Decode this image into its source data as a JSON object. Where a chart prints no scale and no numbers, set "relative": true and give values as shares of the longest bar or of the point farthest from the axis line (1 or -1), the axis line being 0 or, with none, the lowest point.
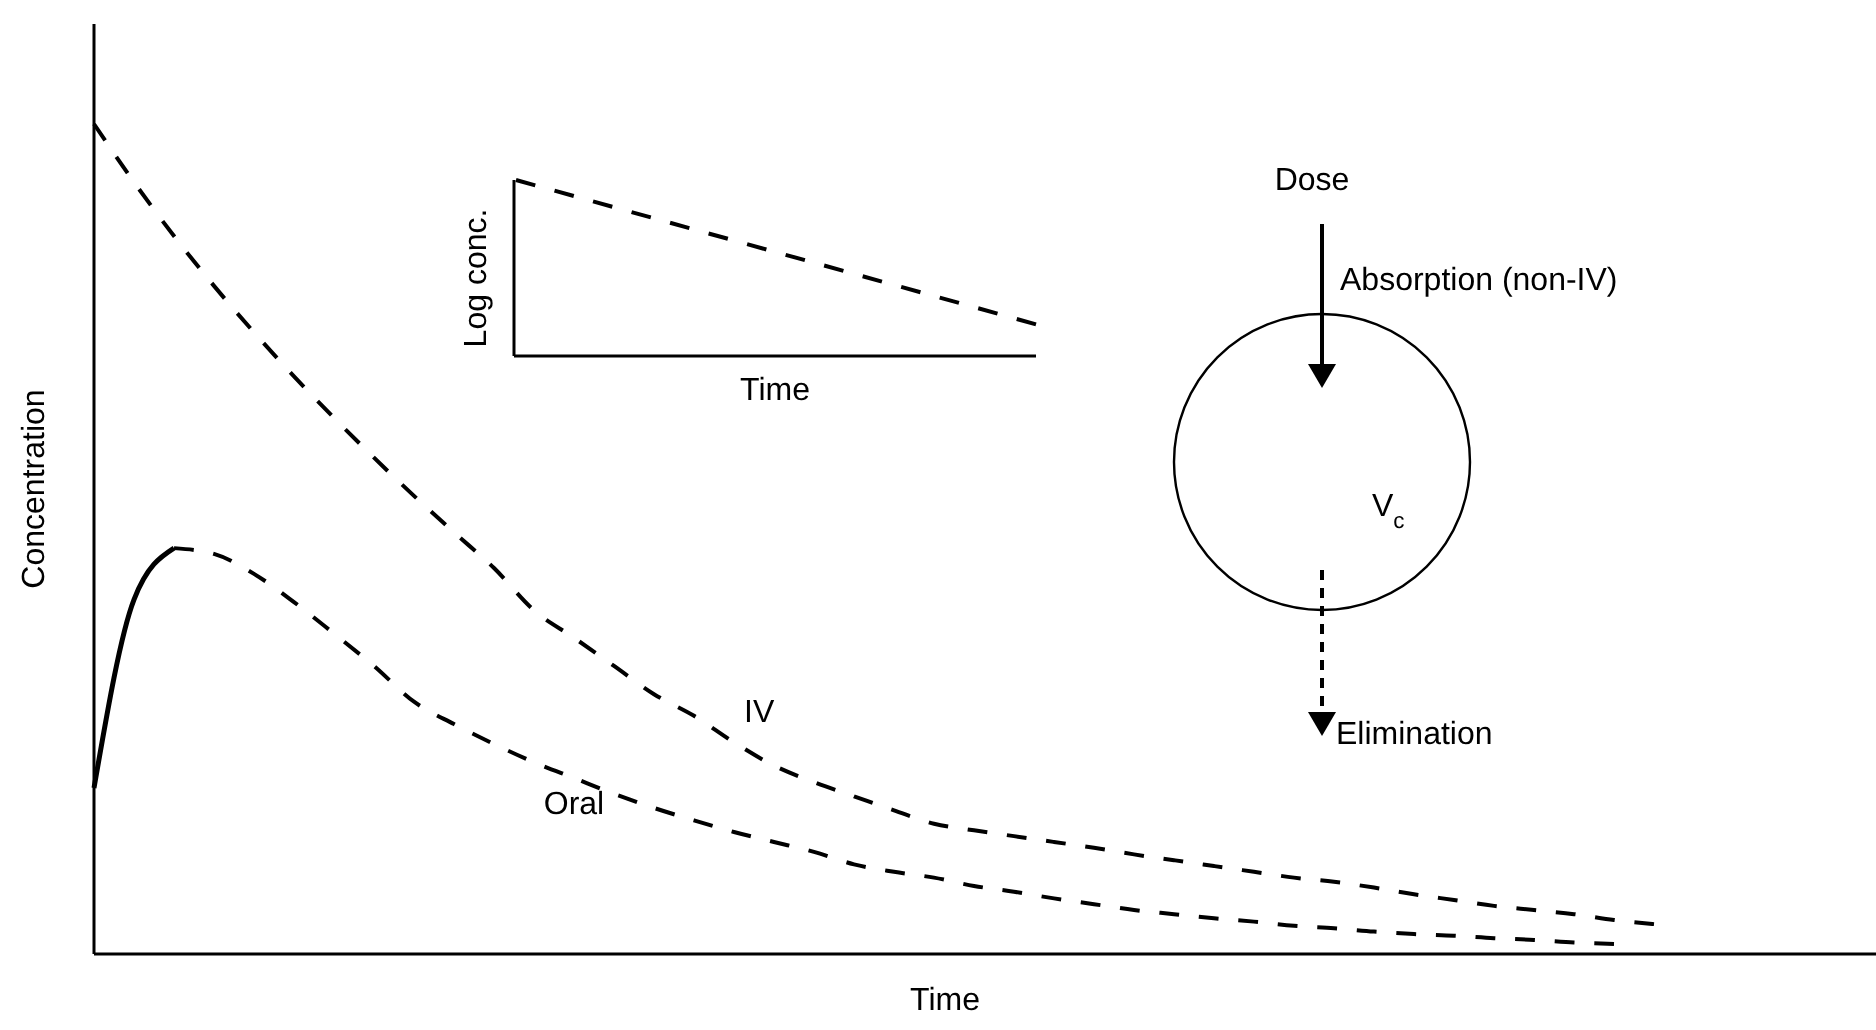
{
  "chart_data": [
    {
      "type": "line",
      "relative": true,
      "xlabel": "Time",
      "ylabel": "Concentration",
      "categories": [
        null,
        null,
        null,
        null,
        null,
        null,
        null,
        null,
        null,
        null,
        null,
        null,
        null,
        null,
        null,
        null,
        null,
        null,
        null,
        null,
        null,
        null,
        null,
        null,
        null,
        null,
        null,
        null,
        null,
        null,
        null,
        null,
        null,
        null,
        null,
        null,
        null,
        null,
        null,
        null,
        null,
        null,
        null,
        null,
        null
      ],
      "series": [
        {
          "name": "IV",
          "color": "#000000",
          "line_style": "dashed",
          "values": [
            1.0,
            0.93,
            0.865,
            0.805,
            0.749,
            0.696,
            0.646,
            0.598,
            0.552,
            0.508,
            0.465,
            0.414,
            0.381,
            0.347,
            0.313,
            0.287,
            0.255,
            0.227,
            0.207,
            0.19,
            0.173,
            0.157,
            0.149,
            0.142,
            0.135,
            0.128,
            0.12,
            0.113,
            0.106,
            0.099,
            0.092,
            0.087,
            0.08,
            0.072,
            0.065,
            0.058,
            0.053,
            0.048,
            0.041,
            0.036,
            null,
            null,
            null,
            null,
            null
          ]
        },
        {
          "color": "#000000",
          "line_style": "solid",
          "values": [
            0.2,
            0.427,
            0.489,
            null,
            null,
            null,
            null,
            null,
            null,
            null,
            null,
            null,
            null,
            null,
            null,
            null,
            null,
            null,
            null,
            null,
            null,
            null,
            null,
            null,
            null,
            null,
            null,
            null,
            null,
            null,
            null,
            null,
            null,
            null,
            null,
            null,
            null,
            null,
            null,
            null,
            null,
            null,
            null,
            null,
            null
          ]
        },
        {
          "name": "Oral",
          "color": "#000000",
          "line_style": "dashed",
          "values": [
            null,
            null,
            0.489,
            0.482,
            0.458,
            0.424,
            0.386,
            0.347,
            0.304,
            0.277,
            0.253,
            0.231,
            0.212,
            0.193,
            0.176,
            0.161,
            0.147,
            0.135,
            0.123,
            0.108,
            0.099,
            0.092,
            0.082,
            0.075,
            0.067,
            0.06,
            0.053,
            0.048,
            0.043,
            0.039,
            0.034,
            0.031,
            0.027,
            0.024,
            0.022,
            0.019,
            0.017,
            0.014,
            0.012,
            null,
            null,
            null,
            null,
            null,
            null
          ]
        }
      ],
      "annotations": [
        "Dose",
        "Absorption (non-IV)",
        "V$_{c}$",
        "Elimination"
      ]
    },
    {
      "type": "line",
      "relative": true,
      "xlabel": "Time",
      "ylabel": "Log conc.",
      "categories": [
        null,
        null
      ],
      "series": [
        {
          "color": "#000000",
          "line_style": "dashed",
          "values": [
            1.0,
            0.18
          ]
        }
      ]
    }
  ]
}
